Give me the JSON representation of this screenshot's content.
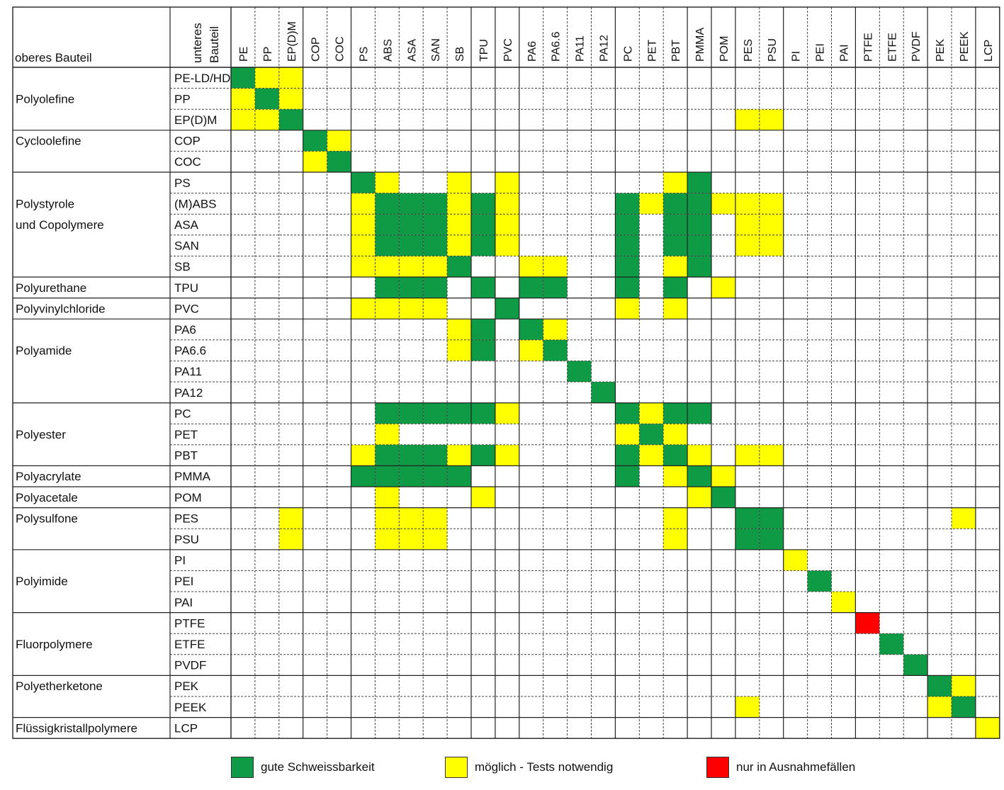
{
  "chart_data": {
    "type": "heatmap",
    "corner_label": "oberes Bauteil",
    "col_axis_label": "unteres Bauteil",
    "columns": [
      "PE",
      "PP",
      "EP(D)M",
      "COP",
      "COC",
      "PS",
      "ABS",
      "ASA",
      "SAN",
      "SB",
      "TPU",
      "PVC",
      "PA6",
      "PA6.6",
      "PA11",
      "PA12",
      "PC",
      "PET",
      "PBT",
      "PMMA",
      "POM",
      "PES",
      "PSU",
      "PI",
      "PEI",
      "PAI",
      "PTFE",
      "ETFE",
      "PVDF",
      "PEK",
      "PEEK",
      "LCP"
    ],
    "rows": [
      "PE-LD/HD",
      "PP",
      "EP(D)M",
      "COP",
      "COC",
      "PS",
      "(M)ABS",
      "ASA",
      "SAN",
      "SB",
      "TPU",
      "PVC",
      "PA6",
      "PA6.6",
      "PA11",
      "PA12",
      "PC",
      "PET",
      "PBT",
      "PMMA",
      "POM",
      "PES",
      "PSU",
      "PI",
      "PEI",
      "PAI",
      "PTFE",
      "ETFE",
      "PVDF",
      "PEK",
      "PEEK",
      "LCP"
    ],
    "groups": [
      {
        "name": "Polyolefine",
        "first_row": 0,
        "row_count": 3,
        "label_rows": [
          1
        ]
      },
      {
        "name": "Cycloolefine",
        "first_row": 3,
        "row_count": 2,
        "label_rows": [
          3
        ]
      },
      {
        "name": "Polystyrole und Copolymere",
        "lines": [
          "Polystyrole",
          "und Copolymere"
        ],
        "first_row": 5,
        "row_count": 5,
        "label_rows": [
          6,
          7
        ]
      },
      {
        "name": "Polyurethane",
        "first_row": 10,
        "row_count": 1,
        "label_rows": [
          10
        ]
      },
      {
        "name": "Polyvinylchloride",
        "first_row": 11,
        "row_count": 1,
        "label_rows": [
          11
        ]
      },
      {
        "name": "Polyamide",
        "first_row": 12,
        "row_count": 4,
        "label_rows": [
          13
        ]
      },
      {
        "name": "Polyester",
        "first_row": 16,
        "row_count": 3,
        "label_rows": [
          17
        ]
      },
      {
        "name": "Polyacrylate",
        "first_row": 19,
        "row_count": 1,
        "label_rows": [
          19
        ]
      },
      {
        "name": "Polyacetale",
        "first_row": 20,
        "row_count": 1,
        "label_rows": [
          20
        ]
      },
      {
        "name": "Polysulfone",
        "first_row": 21,
        "row_count": 2,
        "label_rows": [
          21
        ]
      },
      {
        "name": "Polyimide",
        "first_row": 23,
        "row_count": 3,
        "label_rows": [
          24
        ]
      },
      {
        "name": "Fluorpolymere",
        "first_row": 26,
        "row_count": 3,
        "label_rows": [
          27
        ]
      },
      {
        "name": "Polyetherketone",
        "first_row": 29,
        "row_count": 2,
        "label_rows": [
          29
        ]
      },
      {
        "name": "Flüssigkristallpolymere",
        "first_row": 31,
        "row_count": 1,
        "label_rows": [
          31
        ]
      }
    ],
    "column_group_starts": [
      0,
      3,
      5,
      10,
      11,
      12,
      16,
      19,
      20,
      21,
      23,
      26,
      29,
      31
    ],
    "cells": [
      "GYY.............................",
      "YGY.............................",
      "YYG..................YY.........",
      "...GY...........................",
      "...YG...........................",
      ".....GY..Y.Y......YG............",
      ".....YGGGYGY....GYGGYYY.........",
      ".....YGGGYGY....G.GG.YY.........",
      ".....YGGGYGY....G.GG.YY.........",
      ".....YYYYG..YY..G.YG............",
      "......GGG.G.GG..G.G.Y...........",
      ".....YYYY..G....Y.Y.............",
      ".........YG.GY..................",
      ".........YG.YG..................",
      "..............G.................",
      "...............G................",
      "......GGGGGY....GYGG............",
      "......Y.........YGY.............",
      ".....YGGGYGY....GYGY.YY.........",
      ".....GGGGG......G.YGY...........",
      "......Y...Y........YG...........",
      "..Y...YYY.........Y..GG.......Y.",
      "..Y...YYY.........Y..GG.........",
      ".......................Y........",
      "........................G.......",
      ".........................Y......",
      "..........................R.....",
      "...........................G....",
      "............................G...",
      ".............................GY.",
      ".....................Y.......YG.",
      "...............................Y"
    ],
    "legend": [
      {
        "code": "G",
        "label": "gute Schweissbarkeit",
        "color": "#0f9b45"
      },
      {
        "code": "Y",
        "label": "möglich - Tests notwendig",
        "color": "#ffff00"
      },
      {
        "code": "R",
        "label": "nur in Ausnahmefällen",
        "color": "#ff0000"
      }
    ]
  }
}
